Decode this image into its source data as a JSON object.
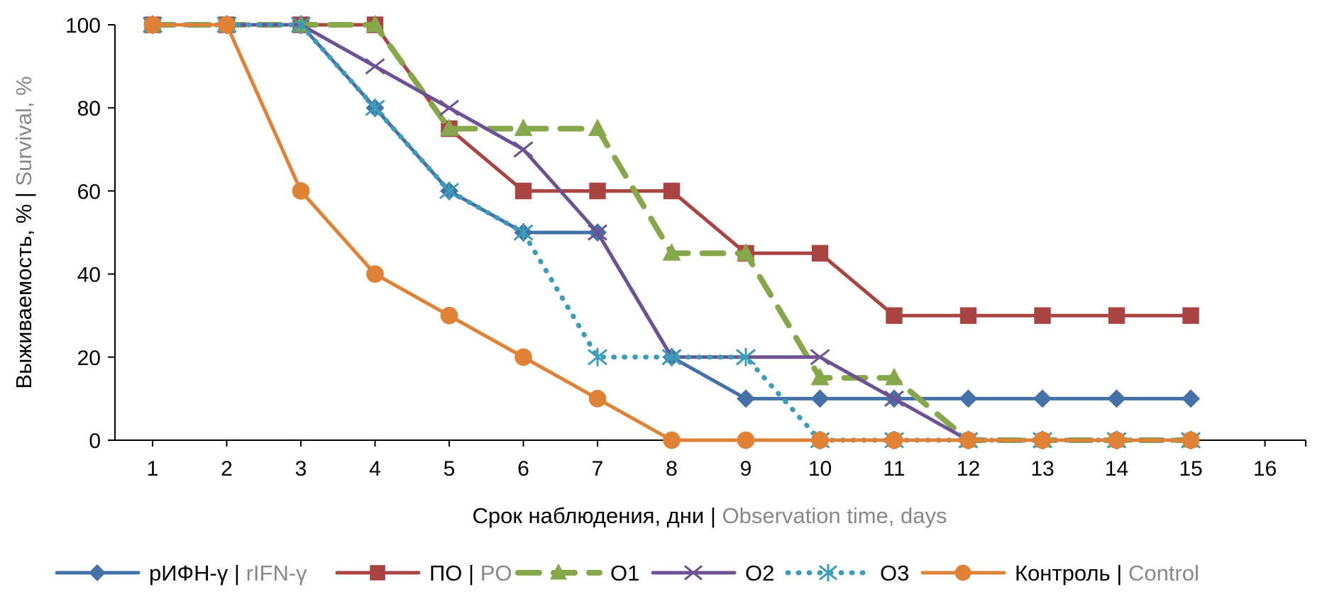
{
  "chart_data": {
    "type": "line",
    "title": "",
    "xlabel": {
      "ru": "Срок наблюдения, дни",
      "sep": " | ",
      "en": "Observation time, days"
    },
    "ylabel": {
      "ru": "Выживаемость, %",
      "sep": " | ",
      "en": "Survival, %"
    },
    "xlim": [
      0.4,
      16.5
    ],
    "ylim": [
      0,
      100
    ],
    "x_ticks": [
      1,
      2,
      3,
      4,
      5,
      6,
      7,
      8,
      9,
      10,
      11,
      12,
      13,
      14,
      15,
      16
    ],
    "y_ticks": [
      0,
      20,
      40,
      60,
      80,
      100
    ],
    "grid": false,
    "legend_position": "bottom",
    "x": [
      1,
      2,
      3,
      4,
      5,
      6,
      7,
      8,
      9,
      10,
      11,
      12,
      13,
      14,
      15
    ],
    "series": [
      {
        "name_ru": "рИФН-γ",
        "name_en": "rIFN-γ",
        "color": "#4472a8",
        "marker": "diamond",
        "dash": "solid",
        "values": [
          100,
          100,
          100,
          80,
          60,
          50,
          50,
          20,
          10,
          10,
          10,
          10,
          10,
          10,
          10
        ]
      },
      {
        "name_ru": "ПО",
        "name_en": "PO",
        "color": "#a94442",
        "marker": "square",
        "dash": "solid",
        "values": [
          100,
          100,
          100,
          100,
          75,
          60,
          60,
          60,
          45,
          45,
          30,
          30,
          30,
          30,
          30
        ]
      },
      {
        "name_ru": "O1",
        "name_en": "",
        "color": "#86a84a",
        "marker": "triangle",
        "dash": "dash",
        "values": [
          100,
          100,
          100,
          100,
          75,
          75,
          75,
          45,
          45,
          15,
          15,
          0,
          0,
          0,
          0
        ]
      },
      {
        "name_ru": "O2",
        "name_en": "",
        "color": "#6c5293",
        "marker": "x",
        "dash": "solid",
        "values": [
          100,
          100,
          100,
          90,
          80,
          70,
          50,
          20,
          20,
          20,
          10,
          0,
          0,
          0,
          0
        ]
      },
      {
        "name_ru": "O3",
        "name_en": "",
        "color": "#3d9db8",
        "marker": "asterisk",
        "dash": "dot",
        "values": [
          100,
          100,
          100,
          80,
          60,
          50,
          20,
          20,
          20,
          0,
          0,
          0,
          0,
          0,
          0
        ]
      },
      {
        "name_ru": "Контроль",
        "name_en": "Control",
        "color": "#e08236",
        "marker": "circle",
        "dash": "solid",
        "values": [
          100,
          100,
          60,
          40,
          30,
          20,
          10,
          0,
          0,
          0,
          0,
          0,
          0,
          0,
          0
        ]
      }
    ]
  }
}
